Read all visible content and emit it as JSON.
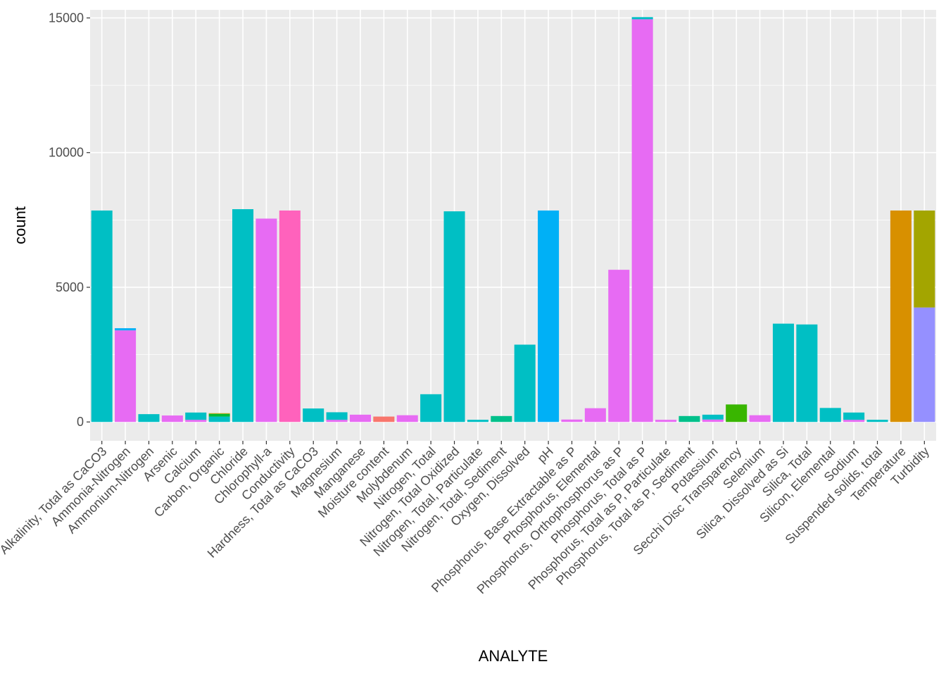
{
  "chart_data": {
    "type": "bar",
    "stacked": true,
    "xlabel": "ANALYTE",
    "ylabel": "count",
    "ylim": [
      -700,
      15300
    ],
    "yticks": [
      0,
      5000,
      10000,
      15000
    ],
    "grid": true,
    "legend": "none",
    "background": "#ebebeb",
    "categories": [
      "Alkalinity, Total as CaCO3",
      "Ammonia-Nitrogen",
      "Ammonium-Nitrogen",
      "Arsenic",
      "Calcium",
      "Carbon, Organic",
      "Chloride",
      "Chlorophyll-a",
      "Conductivity",
      "Hardness, Total as CaCO3",
      "Magnesium",
      "Manganese",
      "Moisture content",
      "Molybdenum",
      "Nitrogen, Total",
      "Nitrogen, Total Oxidized",
      "Nitrogen, Total, Particulate",
      "Nitrogen, Total, Sediment",
      "Oxygen, Dissolved",
      "pH",
      "Phosphorus, Base Extractable as P",
      "Phosphorus, Elemental",
      "Phosphorus, Orthophosphorus as P",
      "Phosphorus, Total as P",
      "Phosphorus, Total as P, Particulate",
      "Phosphorus, Total as P, Sediment",
      "Potassium",
      "Secchi Disc Transparency",
      "Selenium",
      "Silica, Dissolved as Si",
      "Silica, Total",
      "Silicon, Elemental",
      "Sodium",
      "Suspended solids, total",
      "Temperature",
      "Turbidity"
    ],
    "bars": [
      [
        {
          "value": 7850,
          "color": "#00bfc4"
        }
      ],
      [
        {
          "value": 3400,
          "color": "#e76bf3"
        },
        {
          "value": 80,
          "color": "#00b0f6"
        }
      ],
      [
        {
          "value": 290,
          "color": "#00bfc4"
        }
      ],
      [
        {
          "value": 240,
          "color": "#e76bf3"
        }
      ],
      [
        {
          "value": 80,
          "color": "#e76bf3"
        },
        {
          "value": 270,
          "color": "#00bfc4"
        }
      ],
      [
        {
          "value": 200,
          "color": "#00bfc4"
        },
        {
          "value": 100,
          "color": "#00ba38"
        },
        {
          "value": 25,
          "color": "#b79f00"
        }
      ],
      [
        {
          "value": 7900,
          "color": "#00bfc4"
        }
      ],
      [
        {
          "value": 7550,
          "color": "#e76bf3"
        }
      ],
      [
        {
          "value": 7850,
          "color": "#ff62bc"
        }
      ],
      [
        {
          "value": 500,
          "color": "#00bfc4"
        }
      ],
      [
        {
          "value": 80,
          "color": "#e76bf3"
        },
        {
          "value": 280,
          "color": "#00bfc4"
        }
      ],
      [
        {
          "value": 270,
          "color": "#e76bf3"
        }
      ],
      [
        {
          "value": 200,
          "color": "#f8766d"
        }
      ],
      [
        {
          "value": 250,
          "color": "#e76bf3"
        }
      ],
      [
        {
          "value": 1030,
          "color": "#00bfc4"
        }
      ],
      [
        {
          "value": 7820,
          "color": "#00bfc4"
        }
      ],
      [
        {
          "value": 80,
          "color": "#00bfc4"
        }
      ],
      [
        {
          "value": 220,
          "color": "#00c08b"
        }
      ],
      [
        {
          "value": 2870,
          "color": "#00bfc4"
        }
      ],
      [
        {
          "value": 7850,
          "color": "#00b0f6"
        }
      ],
      [
        {
          "value": 90,
          "color": "#e76bf3"
        }
      ],
      [
        {
          "value": 510,
          "color": "#e76bf3"
        }
      ],
      [
        {
          "value": 5650,
          "color": "#e76bf3"
        }
      ],
      [
        {
          "value": 14950,
          "color": "#e76bf3"
        },
        {
          "value": 80,
          "color": "#00bfc4"
        }
      ],
      [
        {
          "value": 80,
          "color": "#e76bf3"
        }
      ],
      [
        {
          "value": 220,
          "color": "#00c08b"
        }
      ],
      [
        {
          "value": 90,
          "color": "#e76bf3"
        },
        {
          "value": 180,
          "color": "#00bfc4"
        }
      ],
      [
        {
          "value": 650,
          "color": "#39b600"
        }
      ],
      [
        {
          "value": 250,
          "color": "#e76bf3"
        }
      ],
      [
        {
          "value": 3650,
          "color": "#00bfc4"
        }
      ],
      [
        {
          "value": 3620,
          "color": "#00bfc4"
        }
      ],
      [
        {
          "value": 520,
          "color": "#00bfc4"
        }
      ],
      [
        {
          "value": 80,
          "color": "#e76bf3"
        },
        {
          "value": 270,
          "color": "#00bfc4"
        }
      ],
      [
        {
          "value": 80,
          "color": "#00bfc4"
        }
      ],
      [
        {
          "value": 7850,
          "color": "#d89000"
        }
      ],
      [
        {
          "value": 4250,
          "color": "#9590ff"
        },
        {
          "value": 3600,
          "color": "#a3a500"
        }
      ]
    ]
  }
}
